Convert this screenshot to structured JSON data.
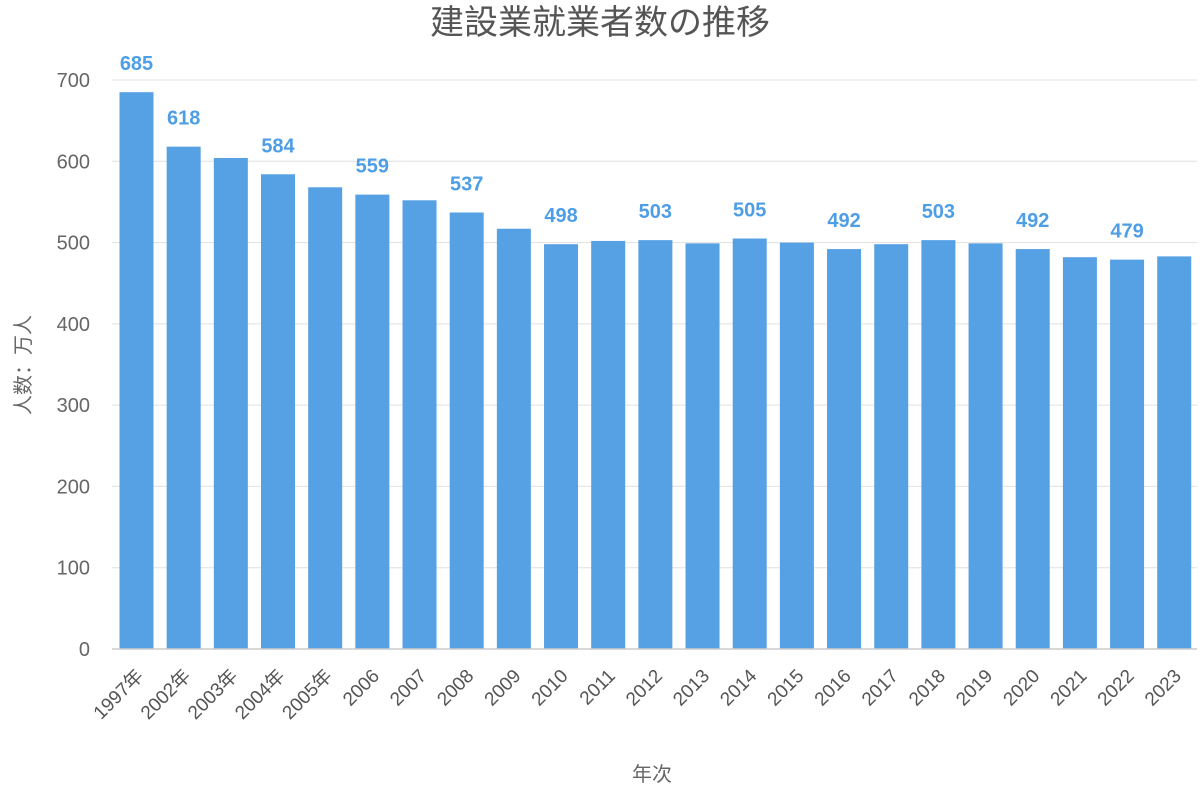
{
  "chart_data": {
    "type": "bar",
    "title": "建設業就業者数の推移",
    "xlabel": "年次",
    "ylabel": "人数：万人",
    "ylim": [
      0,
      700
    ],
    "yticks": [
      0,
      100,
      200,
      300,
      400,
      500,
      600,
      700
    ],
    "grid": true,
    "bar_color": "#56a0e4",
    "label_color": "#4e9ee6",
    "categories": [
      "1997年",
      "2002年",
      "2003年",
      "2004年",
      "2005年",
      "2006",
      "2007",
      "2008",
      "2009",
      "2010",
      "2011",
      "2012",
      "2013",
      "2014",
      "2015",
      "2016",
      "2017",
      "2018",
      "2019",
      "2020",
      "2021",
      "2022",
      "2023"
    ],
    "values": [
      685,
      618,
      604,
      584,
      568,
      559,
      552,
      537,
      517,
      498,
      502,
      503,
      499,
      505,
      500,
      492,
      498,
      503,
      499,
      492,
      482,
      479,
      483
    ],
    "data_labels": [
      {
        "index": 0,
        "text": "685"
      },
      {
        "index": 1,
        "text": "618"
      },
      {
        "index": 3,
        "text": "584"
      },
      {
        "index": 5,
        "text": "559"
      },
      {
        "index": 7,
        "text": "537"
      },
      {
        "index": 9,
        "text": "498"
      },
      {
        "index": 11,
        "text": "503"
      },
      {
        "index": 13,
        "text": "505"
      },
      {
        "index": 15,
        "text": "492"
      },
      {
        "index": 17,
        "text": "503"
      },
      {
        "index": 19,
        "text": "492"
      },
      {
        "index": 21,
        "text": "479"
      }
    ]
  }
}
